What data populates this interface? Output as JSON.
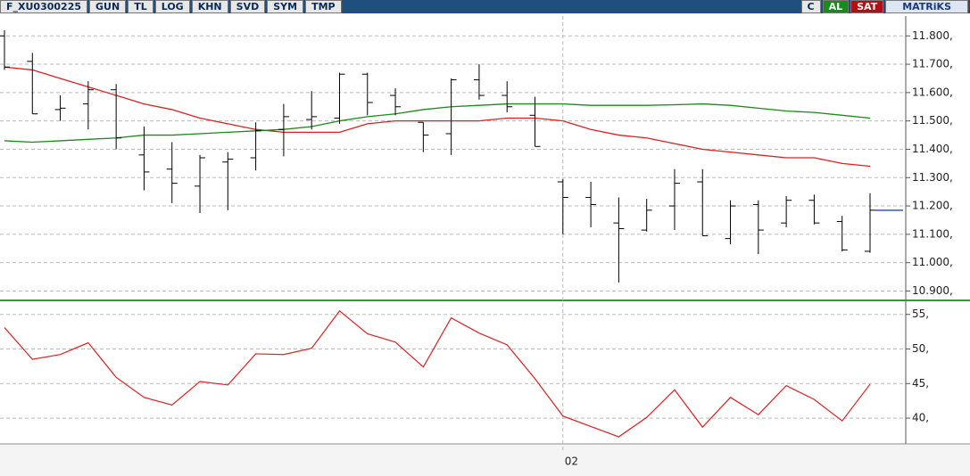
{
  "toolbar": {
    "buttons": [
      "F_XU0300225",
      "GUN",
      "TL",
      "LOG",
      "KHN",
      "SVD",
      "SYM",
      "TMP"
    ],
    "right": [
      "C",
      "AL",
      "SAT",
      "MATRiKS"
    ]
  },
  "chart_data": [
    {
      "type": "ohlc",
      "color": "#000000",
      "categories": [
        null,
        null,
        null,
        null,
        null,
        null,
        null,
        null,
        null,
        null,
        null,
        null,
        null,
        null,
        null,
        null,
        null,
        null,
        null,
        null,
        "02",
        null,
        null,
        null,
        null,
        null,
        null,
        null,
        null,
        null,
        null,
        null
      ],
      "open": [
        11800,
        11710,
        11540,
        11560,
        11610,
        11380,
        11330,
        11270,
        11355,
        11370,
        11470,
        11505,
        11510,
        11665,
        11590,
        11495,
        11455,
        11645,
        11590,
        11520,
        11285,
        11230,
        11140,
        11115,
        11200,
        11285,
        11085,
        11205,
        11140,
        11220,
        11145,
        11040
      ],
      "high": [
        11820,
        11740,
        11590,
        11640,
        11630,
        11480,
        11425,
        11380,
        11390,
        11495,
        11560,
        11605,
        11670,
        11670,
        11615,
        11495,
        11650,
        11700,
        11640,
        11585,
        11295,
        11285,
        11230,
        11225,
        11330,
        11330,
        11220,
        11220,
        11235,
        11240,
        11165,
        11245
      ],
      "low": [
        11680,
        11525,
        11500,
        11470,
        11400,
        11255,
        11210,
        11175,
        11185,
        11325,
        11375,
        11470,
        11490,
        11520,
        11520,
        11390,
        11380,
        11575,
        11530,
        11410,
        11100,
        11125,
        10930,
        11110,
        11115,
        11095,
        11065,
        11030,
        11125,
        11135,
        11040,
        11035
      ],
      "close": [
        11690,
        11525,
        11545,
        11610,
        11440,
        11320,
        11280,
        11370,
        11365,
        11465,
        11515,
        11515,
        11665,
        11565,
        11550,
        11450,
        11645,
        11590,
        11550,
        11410,
        11230,
        11205,
        11120,
        11185,
        11280,
        11095,
        11200,
        11115,
        11220,
        11140,
        11045,
        11185
      ],
      "last_color": "#3355cc",
      "overlays": [
        {
          "color": "#e02020",
          "values": [
            11690,
            11680,
            11650,
            11620,
            11590,
            11560,
            11540,
            11510,
            11490,
            11470,
            11460,
            11460,
            11460,
            11490,
            11500,
            11500,
            11500,
            11500,
            11510,
            11510,
            11500,
            11470,
            11450,
            11440,
            11420,
            11400,
            11390,
            11380,
            11370,
            11370,
            11350,
            11340
          ]
        },
        {
          "color": "#1a8a1a",
          "values": [
            11430,
            11425,
            11430,
            11435,
            11440,
            11450,
            11450,
            11455,
            11460,
            11465,
            11470,
            11480,
            11500,
            11515,
            11525,
            11540,
            11550,
            11555,
            11560,
            11560,
            11560,
            11555,
            11555,
            11555,
            11557,
            11560,
            11555,
            11545,
            11535,
            11530,
            11520,
            11510
          ]
        }
      ],
      "ylim": [
        10870,
        11870
      ],
      "yticks": [
        {
          "value": 11800,
          "label": "11.800,"
        },
        {
          "value": 11700,
          "label": "11.700,"
        },
        {
          "value": 11600,
          "label": "11.600,"
        },
        {
          "value": 11500,
          "label": "11.500,"
        },
        {
          "value": 11400,
          "label": "11.400,"
        },
        {
          "value": 11300,
          "label": "11.300,"
        },
        {
          "value": 11200,
          "label": "11.200,"
        },
        {
          "value": 11100,
          "label": "11.100,"
        },
        {
          "value": 11000,
          "label": "11.000,"
        },
        {
          "value": 10900,
          "label": "10.900,"
        }
      ],
      "grid": true
    },
    {
      "type": "line",
      "color": "#e02020",
      "values": [
        53.1,
        48.5,
        49.2,
        50.9,
        45.9,
        43.0,
        41.9,
        45.3,
        44.8,
        49.3,
        49.2,
        50.1,
        55.5,
        52.2,
        51.0,
        47.4,
        54.5,
        52.3,
        50.6,
        45.7,
        40.3,
        38.8,
        37.3,
        40.1,
        44.1,
        38.7,
        43.0,
        40.5,
        44.7,
        42.7,
        39.6,
        44.9
      ],
      "ylim": [
        36.4,
        56.9
      ],
      "yticks": [
        {
          "value": 55,
          "label": "55,"
        },
        {
          "value": 50,
          "label": "50,"
        },
        {
          "value": 45,
          "label": "45,"
        },
        {
          "value": 40,
          "label": "40,"
        }
      ],
      "grid": true
    }
  ]
}
